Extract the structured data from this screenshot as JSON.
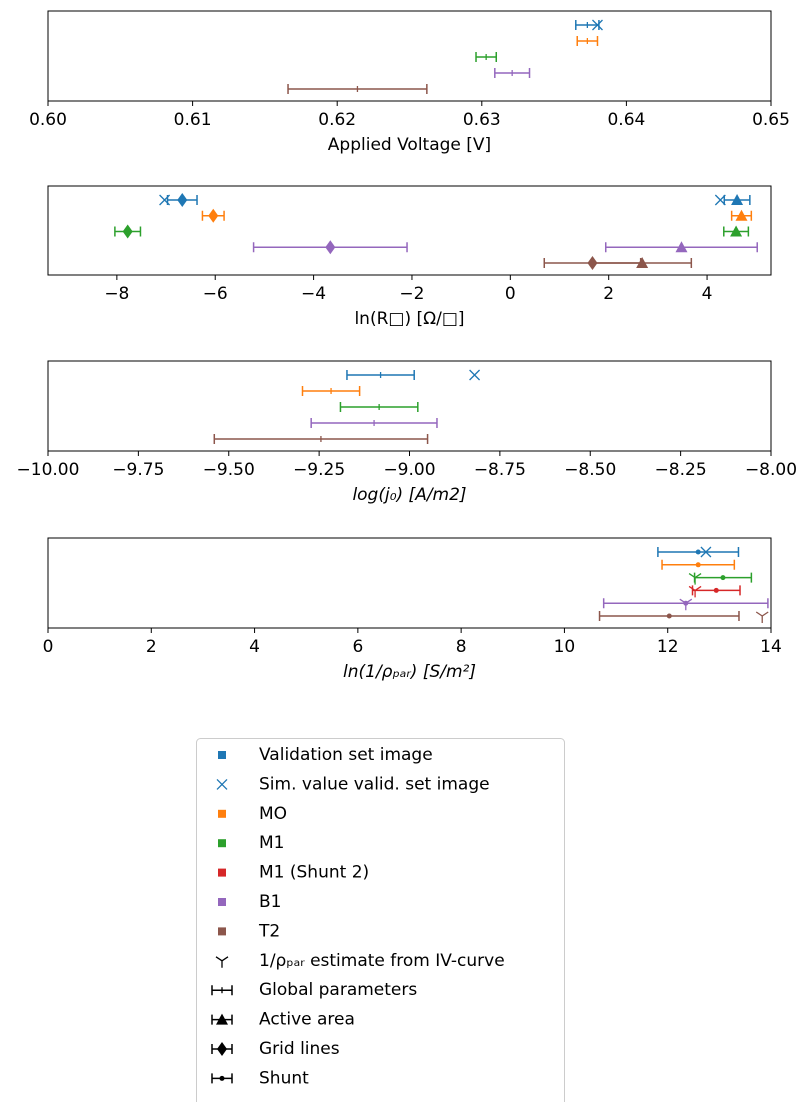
{
  "chart_data": [
    {
      "type": "errorbar",
      "xlabel": "Applied Voltage [V]",
      "italic": false,
      "xlim": [
        0.6,
        0.65
      ],
      "xticks": [
        {
          "value": 0.6,
          "label": "0.60"
        },
        0.61,
        0.62,
        0.63,
        0.64,
        0.65
      ],
      "rows": [
        {
          "color": "#1f77b4",
          "points": [
            {
              "marker": "global",
              "value": 0.6373,
              "error": 0.0008
            },
            {
              "marker": "x",
              "value": 0.638
            }
          ]
        },
        {
          "color": "#ff7f0e",
          "points": [
            {
              "marker": "global",
              "value": 0.6373,
              "error": 0.0007
            }
          ]
        },
        {
          "color": "#2ca02c",
          "points": [
            {
              "marker": "global",
              "value": 0.6303,
              "error": 0.0007
            }
          ]
        },
        {
          "color": "#9467bd",
          "points": [
            {
              "marker": "global",
              "value": 0.6321,
              "error": 0.0012
            }
          ]
        },
        {
          "color": "#8c564b",
          "points": [
            {
              "marker": "global",
              "value": 0.6214,
              "error": 0.0048
            }
          ]
        }
      ]
    },
    {
      "type": "errorbar",
      "xlabel": "ln(R□) [Ω/□]",
      "italic": false,
      "xlim": [
        -9.4,
        5.3
      ],
      "xticks": [
        {
          "value": -8,
          "label": "−8"
        },
        {
          "value": -6,
          "label": "−6"
        },
        {
          "value": -4,
          "label": "−4"
        },
        {
          "value": -2,
          "label": "−2"
        },
        0,
        2,
        4
      ],
      "rows": [
        {
          "color": "#1f77b4",
          "points": [
            {
              "marker": "diamond",
              "value": -6.67,
              "error": 0.3
            },
            {
              "marker": "x",
              "value": -7.03
            },
            {
              "marker": "triangle",
              "value": 4.61,
              "error": 0.26
            },
            {
              "marker": "x",
              "value": 4.27
            }
          ]
        },
        {
          "color": "#ff7f0e",
          "points": [
            {
              "marker": "diamond",
              "value": -6.04,
              "error": 0.22
            },
            {
              "marker": "triangle",
              "value": 4.7,
              "error": 0.2
            }
          ]
        },
        {
          "color": "#2ca02c",
          "points": [
            {
              "marker": "diamond",
              "value": -7.78,
              "error": 0.26
            },
            {
              "marker": "triangle",
              "value": 4.59,
              "error": 0.25
            }
          ]
        },
        {
          "color": "#9467bd",
          "points": [
            {
              "marker": "diamond",
              "value": -3.66,
              "error": 1.56
            },
            {
              "marker": "triangle",
              "value": 3.48,
              "error": 1.54
            }
          ]
        },
        {
          "color": "#8c564b",
          "points": [
            {
              "marker": "diamond",
              "value": 1.67,
              "error": 0.98
            },
            {
              "marker": "triangle",
              "value": 2.68,
              "error": 1.0
            }
          ]
        }
      ]
    },
    {
      "type": "errorbar",
      "xlabel": "log(j₀) [A/m2]",
      "italic": true,
      "xlim": [
        -10,
        -8
      ],
      "xticks": [
        {
          "value": -10,
          "label": "−10.00"
        },
        {
          "value": -9.75,
          "label": "−9.75"
        },
        {
          "value": -9.5,
          "label": "−9.50"
        },
        {
          "value": -9.25,
          "label": "−9.25"
        },
        {
          "value": -9,
          "label": "−9.00"
        },
        {
          "value": -8.75,
          "label": "−8.75"
        },
        {
          "value": -8.5,
          "label": "−8.50"
        },
        {
          "value": -8.25,
          "label": "−8.25"
        },
        {
          "value": -8,
          "label": "−8.00"
        }
      ],
      "rows": [
        {
          "color": "#1f77b4",
          "points": [
            {
              "marker": "global",
              "value": -9.08,
              "error": 0.093
            },
            {
              "marker": "x",
              "value": -8.82
            }
          ]
        },
        {
          "color": "#ff7f0e",
          "points": [
            {
              "marker": "global",
              "value": -9.217,
              "error": 0.079
            }
          ]
        },
        {
          "color": "#2ca02c",
          "points": [
            {
              "marker": "global",
              "value": -9.084,
              "error": 0.107
            }
          ]
        },
        {
          "color": "#9467bd",
          "points": [
            {
              "marker": "global",
              "value": -9.098,
              "error": 0.174
            }
          ]
        },
        {
          "color": "#8c564b",
          "points": [
            {
              "marker": "global",
              "value": -9.245,
              "error": 0.295
            }
          ]
        }
      ]
    },
    {
      "type": "errorbar",
      "xlabel": "ln(1/ρₚₐᵣ) [S/m²]",
      "italic": true,
      "xlim": [
        0,
        14
      ],
      "xticks": [
        0,
        2,
        4,
        6,
        8,
        10,
        12,
        14
      ],
      "rows": [
        {
          "color": "#1f77b4",
          "points": [
            {
              "marker": "shunt",
              "value": 12.59,
              "error": 0.78
            },
            {
              "marker": "x",
              "value": 12.74
            }
          ]
        },
        {
          "color": "#ff7f0e",
          "points": [
            {
              "marker": "shunt",
              "value": 12.59,
              "error": 0.7
            }
          ]
        },
        {
          "color": "#2ca02c",
          "points": [
            {
              "marker": "shunt",
              "value": 13.07,
              "error": 0.55
            },
            {
              "marker": "tri",
              "value": 12.53
            }
          ]
        },
        {
          "color": "#d62728",
          "points": [
            {
              "marker": "shunt",
              "value": 12.94,
              "error": 0.46
            },
            {
              "marker": "tri",
              "value": 12.53
            }
          ]
        },
        {
          "color": "#9467bd",
          "points": [
            {
              "marker": "shunt",
              "value": 12.35,
              "error": 1.59
            },
            {
              "marker": "tri",
              "value": 12.35
            }
          ]
        },
        {
          "color": "#8c564b",
          "points": [
            {
              "marker": "shunt",
              "value": 12.03,
              "error": 1.35
            },
            {
              "marker": "tri",
              "value": 13.83
            }
          ]
        }
      ]
    }
  ],
  "legend": [
    {
      "label": "Validation set image",
      "color": "#1f77b4",
      "marker": "square"
    },
    {
      "label": "Sim. value valid. set image",
      "color": "#1f77b4",
      "marker": "x"
    },
    {
      "label": "MO",
      "color": "#ff7f0e",
      "marker": "square"
    },
    {
      "label": "M1",
      "color": "#2ca02c",
      "marker": "square"
    },
    {
      "label": "M1 (Shunt 2)",
      "color": "#d62728",
      "marker": "square"
    },
    {
      "label": "B1",
      "color": "#9467bd",
      "marker": "square"
    },
    {
      "label": "T2",
      "color": "#8c564b",
      "marker": "square"
    },
    {
      "label": "1/ρₚₐᵣ estimate from IV-curve",
      "color": "#000000",
      "marker": "tri"
    },
    {
      "label": "Global parameters",
      "color": "#000000",
      "marker": "global"
    },
    {
      "label": "Active area",
      "color": "#000000",
      "marker": "triangle"
    },
    {
      "label": "Grid lines",
      "color": "#000000",
      "marker": "diamond"
    },
    {
      "label": "Shunt",
      "color": "#000000",
      "marker": "shunt"
    }
  ]
}
